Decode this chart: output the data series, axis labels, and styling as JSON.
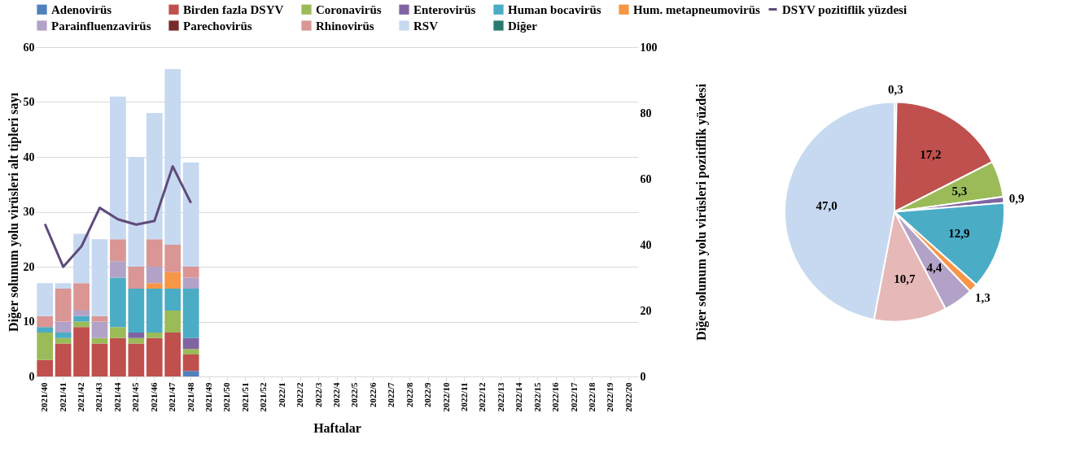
{
  "chart_data": [
    {
      "type": "bar",
      "stacked": true,
      "xlabel": "Haftalar",
      "ylabel": "Diğer solunum yolu virüsleri alt tipleri sayı",
      "y2label": "Diğer solunum yolu virüsleri pozitiflik yüzdesi",
      "categories": [
        "2021/40",
        "2021/41",
        "2021/42",
        "2021/43",
        "2021/44",
        "2021/45",
        "2021/46",
        "2021/47",
        "2021/48",
        "2021/49",
        "2021/50",
        "2021/51",
        "2021/52",
        "2022/1",
        "2022/2",
        "2022/3",
        "2022/4",
        "2022/5",
        "2022/6",
        "2022/7",
        "2022/8",
        "2022/9",
        "2022/10",
        "2022/11",
        "2022/12",
        "2022/13",
        "2022/14",
        "2022/15",
        "2022/16",
        "2022/17",
        "2022/18",
        "2022/19",
        "2022/20"
      ],
      "ylim": [
        0,
        60
      ],
      "yticks": [
        0,
        10,
        20,
        30,
        40,
        50,
        60
      ],
      "y2lim": [
        0,
        100
      ],
      "y2ticks": [
        0,
        20,
        40,
        60,
        80,
        100
      ],
      "grid": "y",
      "legend": "top",
      "series": [
        {
          "name": "Adenovirüs",
          "color": "#4f81bd",
          "values": [
            null,
            null,
            null,
            null,
            null,
            null,
            null,
            null,
            1,
            null,
            null,
            null,
            null,
            null,
            null,
            null,
            null,
            null,
            null,
            null,
            null,
            null,
            null,
            null,
            null,
            null,
            null,
            null,
            null,
            null,
            null,
            null,
            null
          ]
        },
        {
          "name": "Birden fazla DSYV",
          "color": "#c0504d",
          "values": [
            3,
            6,
            9,
            6,
            7,
            6,
            7,
            8,
            3,
            null,
            null,
            null,
            null,
            null,
            null,
            null,
            null,
            null,
            null,
            null,
            null,
            null,
            null,
            null,
            null,
            null,
            null,
            null,
            null,
            null,
            null,
            null,
            null
          ]
        },
        {
          "name": "Coronavirüs",
          "color": "#9bbb59",
          "values": [
            5,
            1,
            1,
            1,
            2,
            1,
            1,
            4,
            1,
            null,
            null,
            null,
            null,
            null,
            null,
            null,
            null,
            null,
            null,
            null,
            null,
            null,
            null,
            null,
            null,
            null,
            null,
            null,
            null,
            null,
            null,
            null,
            null
          ]
        },
        {
          "name": "Enterovirüs",
          "color": "#8064a2",
          "values": [
            null,
            null,
            null,
            null,
            null,
            1,
            null,
            null,
            2,
            null,
            null,
            null,
            null,
            null,
            null,
            null,
            null,
            null,
            null,
            null,
            null,
            null,
            null,
            null,
            null,
            null,
            null,
            null,
            null,
            null,
            null,
            null,
            null
          ]
        },
        {
          "name": "Human bocavirüs",
          "color": "#4bacc6",
          "values": [
            1,
            1,
            1,
            null,
            9,
            8,
            8,
            4,
            9,
            null,
            null,
            null,
            null,
            null,
            null,
            null,
            null,
            null,
            null,
            null,
            null,
            null,
            null,
            null,
            null,
            null,
            null,
            null,
            null,
            null,
            null,
            null,
            null
          ]
        },
        {
          "name": "Hum. metapneumovirüs",
          "color": "#f79646",
          "values": [
            null,
            null,
            null,
            null,
            null,
            null,
            1,
            3,
            null,
            null,
            null,
            null,
            null,
            null,
            null,
            null,
            null,
            null,
            null,
            null,
            null,
            null,
            null,
            null,
            null,
            null,
            null,
            null,
            null,
            null,
            null,
            null,
            null
          ]
        },
        {
          "name": "Parainfluenzavirüs",
          "color": "#b3a2c7",
          "values": [
            null,
            2,
            1,
            3,
            3,
            null,
            3,
            null,
            2,
            null,
            null,
            null,
            null,
            null,
            null,
            null,
            null,
            null,
            null,
            null,
            null,
            null,
            null,
            null,
            null,
            null,
            null,
            null,
            null,
            null,
            null,
            null,
            null
          ]
        },
        {
          "name": "Parechovirüs",
          "color": "#772c2a",
          "values": [
            null,
            null,
            null,
            null,
            null,
            null,
            null,
            null,
            null,
            null,
            null,
            null,
            null,
            null,
            null,
            null,
            null,
            null,
            null,
            null,
            null,
            null,
            null,
            null,
            null,
            null,
            null,
            null,
            null,
            null,
            null,
            null,
            null
          ]
        },
        {
          "name": "Rhinovirüs",
          "color": "#da9694",
          "values": [
            2,
            6,
            5,
            1,
            4,
            4,
            5,
            5,
            2,
            null,
            null,
            null,
            null,
            null,
            null,
            null,
            null,
            null,
            null,
            null,
            null,
            null,
            null,
            null,
            null,
            null,
            null,
            null,
            null,
            null,
            null,
            null,
            null
          ]
        },
        {
          "name": "RSV",
          "color": "#c6d9f0",
          "values": [
            6,
            1,
            9,
            14,
            26,
            20,
            23,
            32,
            19,
            null,
            null,
            null,
            null,
            null,
            null,
            null,
            null,
            null,
            null,
            null,
            null,
            null,
            null,
            null,
            null,
            null,
            null,
            null,
            null,
            null,
            null,
            null,
            null
          ]
        },
        {
          "name": "Diğer",
          "color": "#2a7b6f",
          "values": [
            null,
            null,
            null,
            null,
            null,
            null,
            null,
            null,
            null,
            null,
            null,
            null,
            null,
            null,
            null,
            null,
            null,
            null,
            null,
            null,
            null,
            null,
            null,
            null,
            null,
            null,
            null,
            null,
            null,
            null,
            null,
            null,
            null
          ]
        },
        {
          "name": "DSYV pozitiflik yüzdesi",
          "type": "line",
          "axis": "y2",
          "color": "#604a7b",
          "values": [
            46.3,
            33.3,
            39.5,
            51.2,
            47.7,
            46.1,
            47.2,
            63.8,
            52.7,
            null,
            null,
            null,
            null,
            null,
            null,
            null,
            null,
            null,
            null,
            null,
            null,
            null,
            null,
            null,
            null,
            null,
            null,
            null,
            null,
            null,
            null,
            null,
            null
          ]
        }
      ]
    },
    {
      "type": "pie",
      "categories": [
        null,
        null,
        null,
        null,
        null,
        null,
        null,
        null,
        null
      ],
      "values": [
        0.3,
        17.2,
        5.3,
        0.9,
        12.9,
        1.3,
        4.4,
        10.7,
        47.0
      ],
      "value_labels": [
        "0,3",
        "17,2",
        "5,3",
        "0,9",
        "12,9",
        "1,3",
        "4,4",
        "10,7",
        "47,0"
      ],
      "colors": [
        "#4f81bd",
        "#c0504d",
        "#9bbb59",
        "#8064a2",
        "#4bacc6",
        "#f79646",
        "#b3a2c7",
        "#e6b8b7",
        "#c6d9f0"
      ]
    }
  ]
}
